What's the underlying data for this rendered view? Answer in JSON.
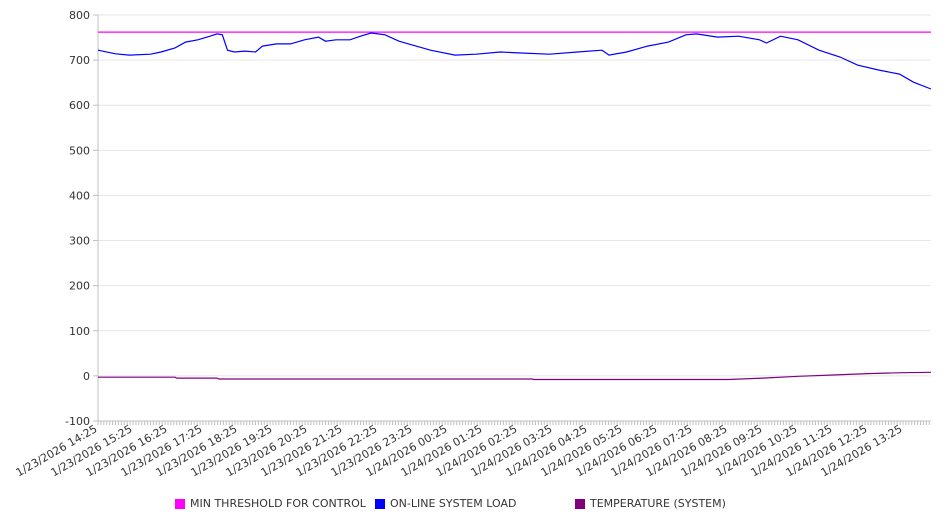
{
  "chart_data": {
    "type": "line",
    "title": "",
    "xlabel": "",
    "ylabel": "",
    "ylim": [
      -100,
      800
    ],
    "yticks": [
      800,
      700,
      600,
      500,
      400,
      300,
      200,
      100,
      0,
      -100
    ],
    "x_unit": "hours since 1/23/2026 14:25",
    "xlim": [
      0,
      23.8
    ],
    "xtick_labels": [
      "1/23/2026 14:25",
      "1/23/2026 15:25",
      "1/23/2026 16:25",
      "1/23/2026 17:25",
      "1/23/2026 18:25",
      "1/23/2026 19:25",
      "1/23/2026 20:25",
      "1/23/2026 21:25",
      "1/23/2026 22:25",
      "1/23/2026 23:25",
      "1/24/2026 00:25",
      "1/24/2026 01:25",
      "1/24/2026 02:25",
      "1/24/2026 03:25",
      "1/24/2026 04:25",
      "1/24/2026 05:25",
      "1/24/2026 06:25",
      "1/24/2026 07:25",
      "1/24/2026 08:25",
      "1/24/2026 09:25",
      "1/24/2026 10:25",
      "1/24/2026 11:25",
      "1/24/2026 12:25",
      "1/24/2026 13:25"
    ],
    "grid": true,
    "legend_position": "bottom",
    "series": [
      {
        "name": "MIN THRESHOLD FOR CONTROL",
        "color": "#ff00ff",
        "points": [
          [
            0,
            762
          ],
          [
            23.8,
            762
          ]
        ]
      },
      {
        "name": "ON-LINE SYSTEM LOAD",
        "color": "#0000ff",
        "points": [
          [
            0,
            722
          ],
          [
            0.5,
            714
          ],
          [
            0.9,
            711
          ],
          [
            1.5,
            713
          ],
          [
            1.8,
            718
          ],
          [
            2.2,
            727
          ],
          [
            2.5,
            740
          ],
          [
            2.85,
            745
          ],
          [
            3.2,
            753
          ],
          [
            3.4,
            758
          ],
          [
            3.55,
            756
          ],
          [
            3.7,
            722
          ],
          [
            3.9,
            718
          ],
          [
            4.2,
            720
          ],
          [
            4.5,
            718
          ],
          [
            4.7,
            731
          ],
          [
            5.1,
            736
          ],
          [
            5.5,
            736
          ],
          [
            5.9,
            745
          ],
          [
            6.3,
            751
          ],
          [
            6.5,
            742
          ],
          [
            6.8,
            745
          ],
          [
            7.2,
            745
          ],
          [
            7.5,
            753
          ],
          [
            7.8,
            760
          ],
          [
            8.2,
            756
          ],
          [
            8.6,
            742
          ],
          [
            9.0,
            733
          ],
          [
            9.5,
            722
          ],
          [
            10.2,
            711
          ],
          [
            10.8,
            713
          ],
          [
            11.5,
            718
          ],
          [
            12,
            716
          ],
          [
            12.9,
            713
          ],
          [
            13.7,
            718
          ],
          [
            14.4,
            722
          ],
          [
            14.6,
            711
          ],
          [
            15.1,
            718
          ],
          [
            15.7,
            731
          ],
          [
            16.3,
            740
          ],
          [
            16.8,
            756
          ],
          [
            17.1,
            758
          ],
          [
            17.7,
            751
          ],
          [
            18.3,
            753
          ],
          [
            18.9,
            745
          ],
          [
            19.1,
            738
          ],
          [
            19.5,
            753
          ],
          [
            20,
            745
          ],
          [
            20.6,
            722
          ],
          [
            21.2,
            707
          ],
          [
            21.7,
            689
          ],
          [
            22.3,
            678
          ],
          [
            22.9,
            669
          ],
          [
            23.3,
            651
          ],
          [
            23.8,
            636
          ]
        ]
      },
      {
        "name": "TEMPERATURE (SYSTEM)",
        "color": "#800080",
        "points": [
          [
            0,
            -3
          ],
          [
            2.2,
            -3
          ],
          [
            2.25,
            -5
          ],
          [
            3.4,
            -5
          ],
          [
            3.45,
            -7
          ],
          [
            12.4,
            -7
          ],
          [
            12.45,
            -8
          ],
          [
            18,
            -8
          ],
          [
            19,
            -5
          ],
          [
            20,
            -1
          ],
          [
            21,
            2
          ],
          [
            22,
            5
          ],
          [
            23,
            7
          ],
          [
            23.8,
            8
          ]
        ]
      }
    ]
  }
}
